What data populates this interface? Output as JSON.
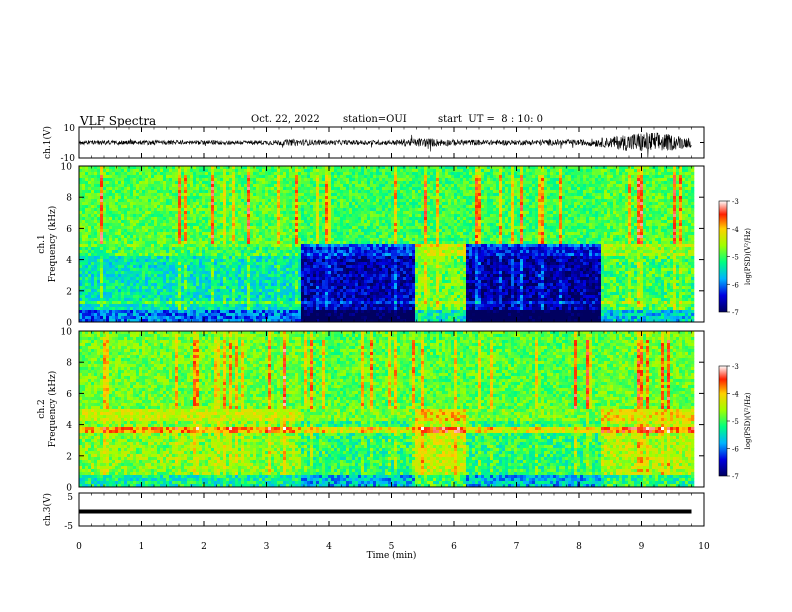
{
  "header": {
    "title": "VLF Spectra",
    "date": "Oct. 22, 2022",
    "station": "station=OUI",
    "start": "start  UT =  8 : 10: 0"
  },
  "chart_data": [
    {
      "type": "line",
      "panel": "ch1-waveform",
      "ylabel": "ch.1(V)",
      "ylim": [
        -10,
        10
      ],
      "yticks": [
        "10",
        "-10"
      ],
      "xlim": [
        0,
        10
      ],
      "grid": false,
      "envelope": [
        {
          "x": 0.0,
          "amp": 1.4
        },
        {
          "x": 1.0,
          "amp": 1.5
        },
        {
          "x": 2.0,
          "amp": 1.4
        },
        {
          "x": 3.0,
          "amp": 1.5
        },
        {
          "x": 3.5,
          "amp": 2.2
        },
        {
          "x": 4.0,
          "amp": 1.5
        },
        {
          "x": 5.0,
          "amp": 1.6
        },
        {
          "x": 5.5,
          "amp": 3.0
        },
        {
          "x": 6.0,
          "amp": 2.0
        },
        {
          "x": 7.0,
          "amp": 1.6
        },
        {
          "x": 7.5,
          "amp": 2.0
        },
        {
          "x": 8.0,
          "amp": 1.8
        },
        {
          "x": 8.5,
          "amp": 3.5
        },
        {
          "x": 8.9,
          "amp": 6.5
        },
        {
          "x": 9.2,
          "amp": 7.0
        },
        {
          "x": 9.5,
          "amp": 5.0
        },
        {
          "x": 9.8,
          "amp": 3.0
        }
      ]
    },
    {
      "type": "heatmap",
      "panel": "ch1-spectrogram",
      "ylabel": "ch.1\nFrequency (kHz)",
      "ylim": [
        0,
        10
      ],
      "yticks": [
        "0",
        "2",
        "4",
        "6",
        "8",
        "10"
      ],
      "xlim": [
        0,
        10
      ],
      "data_end_min": 9.8,
      "colorbar": {
        "label": "log(PSD)(V²/Hz)",
        "range": [
          -7,
          -3
        ],
        "ticks": [
          "-3",
          "-4",
          "-5",
          "-6",
          "-7"
        ]
      },
      "segments": [
        {
          "t0": 0.0,
          "t1": 3.55,
          "band_0_5_kHz": -5.4,
          "band_5_10_kHz": -4.9
        },
        {
          "t0": 3.55,
          "t1": 5.35,
          "band_0_5_kHz": -6.6,
          "band_5_10_kHz": -5.0
        },
        {
          "t0": 5.35,
          "t1": 6.15,
          "band_0_5_kHz": -4.8,
          "band_5_10_kHz": -5.0
        },
        {
          "t0": 6.15,
          "t1": 8.35,
          "band_0_5_kHz": -6.7,
          "band_5_10_kHz": -5.0
        },
        {
          "t0": 8.35,
          "t1": 9.8,
          "band_0_5_kHz": -5.0,
          "band_5_10_kHz": -4.9
        }
      ]
    },
    {
      "type": "heatmap",
      "panel": "ch2-spectrogram",
      "ylabel": "ch.2\nFrequency (kHz)",
      "ylim": [
        0,
        10
      ],
      "yticks": [
        "0",
        "2",
        "4",
        "6",
        "8",
        "10"
      ],
      "xlim": [
        0,
        10
      ],
      "data_end_min": 9.8,
      "colorbar": {
        "label": "log(PSD)(V²/Hz)",
        "range": [
          -7,
          -3
        ],
        "ticks": [
          "-3",
          "-4",
          "-5",
          "-6",
          "-7"
        ]
      },
      "segments": [
        {
          "t0": 0.0,
          "t1": 3.55,
          "band_0_5_kHz": -4.7,
          "band_5_10_kHz": -4.8
        },
        {
          "t0": 3.55,
          "t1": 5.35,
          "band_0_5_kHz": -5.1,
          "band_5_10_kHz": -4.9
        },
        {
          "t0": 5.35,
          "t1": 6.15,
          "band_0_5_kHz": -4.4,
          "band_5_10_kHz": -4.9
        },
        {
          "t0": 6.15,
          "t1": 8.35,
          "band_0_5_kHz": -5.1,
          "band_5_10_kHz": -4.9
        },
        {
          "t0": 8.35,
          "t1": 9.8,
          "band_0_5_kHz": -4.5,
          "band_5_10_kHz": -4.8
        }
      ]
    },
    {
      "type": "line",
      "panel": "ch3-waveform",
      "ylabel": "ch.3(V)",
      "ylim": [
        -5,
        5
      ],
      "yticks": [
        "5",
        "-5"
      ],
      "xlim": [
        0,
        10
      ],
      "value": 0
    }
  ],
  "x_axis": {
    "label": "Time (min)",
    "ticks": [
      "0",
      "1",
      "2",
      "3",
      "4",
      "5",
      "6",
      "7",
      "8",
      "9",
      "10"
    ]
  }
}
